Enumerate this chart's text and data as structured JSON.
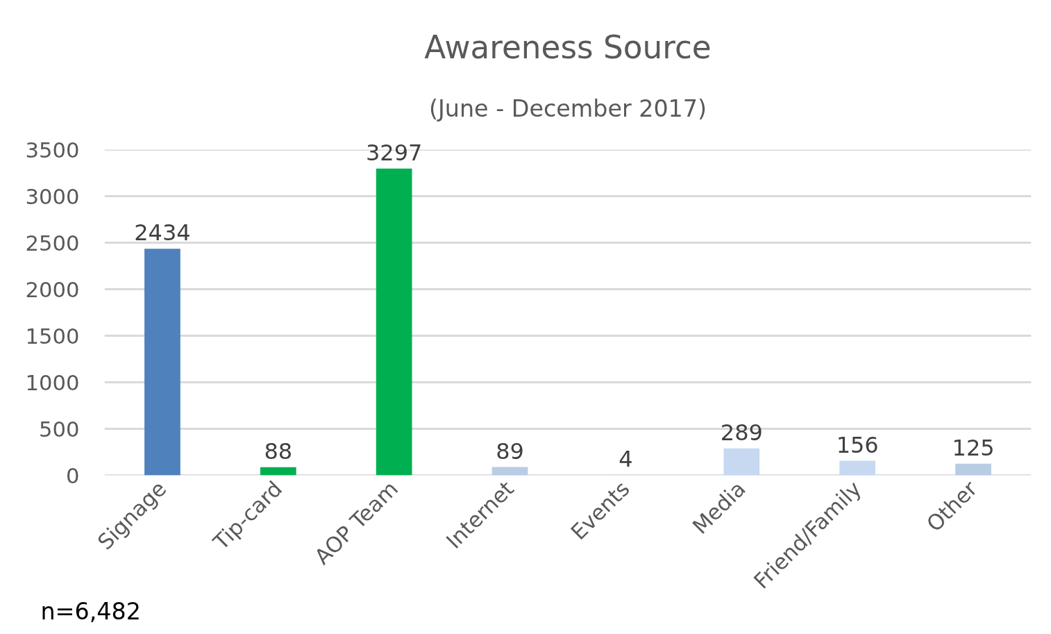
{
  "chart_data": {
    "type": "bar",
    "title": "Awareness Source",
    "subtitle": "(June - December 2017)",
    "annotations": [
      "n=6,482"
    ],
    "categories": [
      "Signage",
      "Tip-card",
      "AOP Team",
      "Internet",
      "Events",
      "Media",
      "Friend/Family",
      "Other"
    ],
    "values": [
      2434,
      88,
      3297,
      89,
      4,
      289,
      156,
      125
    ],
    "colors": [
      "#4f81bd",
      "#00b050",
      "#00b050",
      "#b8cce4",
      "#c6d9f1",
      "#c6d9f1",
      "#c6d9f1",
      "#b8cce4"
    ],
    "ylim": [
      0,
      3500
    ],
    "yticks": [
      0,
      500,
      1000,
      1500,
      2000,
      2500,
      3000,
      3500
    ],
    "grid": "y",
    "data_labels": true
  }
}
